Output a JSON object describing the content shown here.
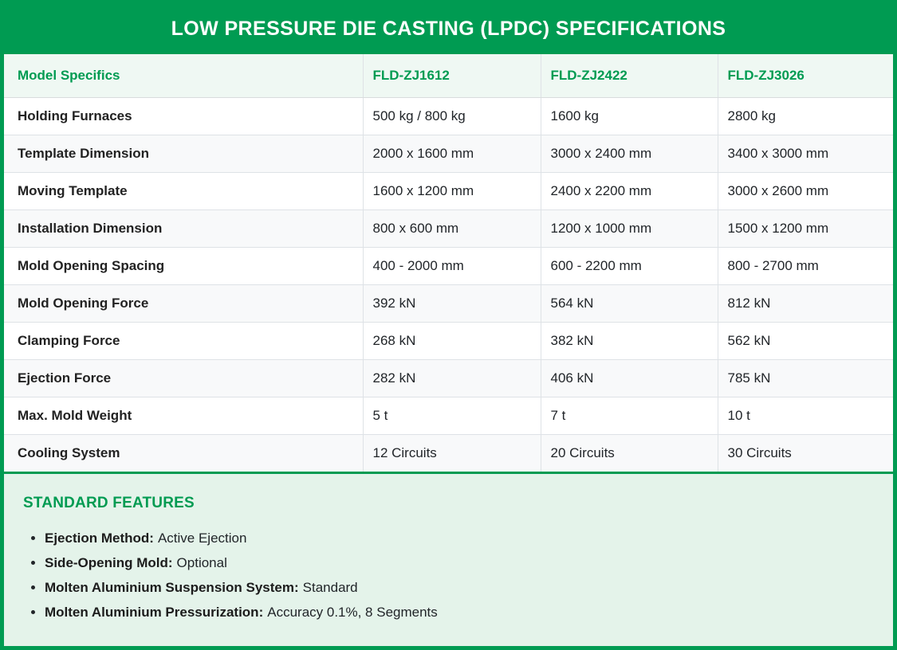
{
  "page": {
    "title": "LOW PRESSURE DIE CASTING (LPDC) SPECIFICATIONS"
  },
  "colors": {
    "brand_green": "#009B52",
    "banner_text": "#FFFFFF",
    "header_row_bg": "#EFF8F3",
    "stripe_row_bg": "#F8F9FA",
    "cell_border": "#DEE2E6",
    "features_bg": "#E4F3EA",
    "body_text": "#212529"
  },
  "spec_table": {
    "columns": [
      "Model Specifics",
      "FLD-ZJ1612",
      "FLD-ZJ2422",
      "FLD-ZJ3026"
    ],
    "rows": [
      {
        "label": "Holding Furnaces",
        "values": [
          "500 kg / 800 kg",
          "1600 kg",
          "2800 kg"
        ]
      },
      {
        "label": "Template Dimension",
        "values": [
          "2000 x 1600 mm",
          "3000 x 2400 mm",
          "3400 x 3000 mm"
        ]
      },
      {
        "label": "Moving Template",
        "values": [
          "1600 x 1200 mm",
          "2400 x 2200 mm",
          "3000 x 2600 mm"
        ]
      },
      {
        "label": "Installation Dimension",
        "values": [
          "800 x 600 mm",
          "1200 x 1000 mm",
          "1500 x 1200 mm"
        ]
      },
      {
        "label": "Mold Opening Spacing",
        "values": [
          "400 - 2000 mm",
          "600 - 2200 mm",
          "800 - 2700 mm"
        ]
      },
      {
        "label": "Mold Opening Force",
        "values": [
          "392 kN",
          "564 kN",
          "812 kN"
        ]
      },
      {
        "label": "Clamping Force",
        "values": [
          "268 kN",
          "382 kN",
          "562 kN"
        ]
      },
      {
        "label": "Ejection Force",
        "values": [
          "282 kN",
          "406 kN",
          "785 kN"
        ]
      },
      {
        "label": "Max. Mold Weight",
        "values": [
          "5 t",
          "7 t",
          "10 t"
        ]
      },
      {
        "label": "Cooling System",
        "values": [
          "12 Circuits",
          "20 Circuits",
          "30 Circuits"
        ]
      }
    ]
  },
  "features": {
    "heading": "STANDARD FEATURES",
    "items": [
      {
        "label": "Ejection Method:",
        "value": "Active Ejection"
      },
      {
        "label": "Side-Opening Mold:",
        "value": "Optional"
      },
      {
        "label": "Molten Aluminium Suspension System:",
        "value": "Standard"
      },
      {
        "label": "Molten Aluminium Pressurization:",
        "value": "Accuracy 0.1%, 8 Segments"
      }
    ]
  }
}
